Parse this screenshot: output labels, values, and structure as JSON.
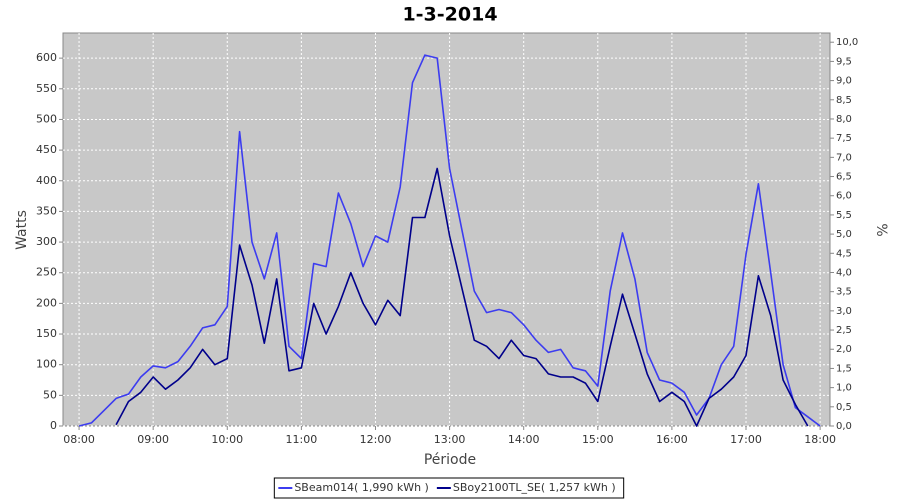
{
  "chart_data": {
    "type": "line",
    "title": "1-3-2014",
    "xlabel": "Période",
    "ylabel": "Watts",
    "y2label": "%",
    "x": [
      "08:00",
      "08:10",
      "08:20",
      "08:30",
      "08:40",
      "08:50",
      "09:00",
      "09:10",
      "09:20",
      "09:30",
      "09:40",
      "09:50",
      "10:00",
      "10:10",
      "10:20",
      "10:30",
      "10:40",
      "10:50",
      "11:00",
      "11:10",
      "11:20",
      "11:30",
      "11:40",
      "11:50",
      "12:00",
      "12:10",
      "12:20",
      "12:30",
      "12:40",
      "12:50",
      "13:00",
      "13:10",
      "13:20",
      "13:30",
      "13:40",
      "13:50",
      "14:00",
      "14:10",
      "14:20",
      "14:30",
      "14:40",
      "14:50",
      "15:00",
      "15:10",
      "15:20",
      "15:30",
      "15:40",
      "15:50",
      "16:00",
      "16:10",
      "16:20",
      "16:30",
      "16:40",
      "16:50",
      "17:00",
      "17:10",
      "17:20",
      "17:30",
      "17:40",
      "17:50",
      "18:00"
    ],
    "series": [
      {
        "name": "SBeam014( 1,990 kWh )",
        "color": "#3c3cf0",
        "values": [
          0,
          5,
          25,
          45,
          52,
          80,
          98,
          95,
          105,
          130,
          160,
          165,
          195,
          480,
          300,
          240,
          315,
          130,
          110,
          265,
          260,
          380,
          330,
          260,
          310,
          300,
          390,
          560,
          605,
          600,
          420,
          320,
          220,
          185,
          190,
          185,
          165,
          140,
          120,
          125,
          95,
          90,
          65,
          220,
          315,
          240,
          120,
          75,
          70,
          55,
          18,
          45,
          100,
          130,
          280,
          395,
          250,
          100,
          30,
          15,
          0
        ]
      },
      {
        "name": "SBoy2100TL_SE( 1,257 kWh )",
        "color": "#00008b",
        "values": [
          null,
          null,
          null,
          2,
          40,
          55,
          80,
          60,
          75,
          95,
          125,
          100,
          110,
          295,
          230,
          135,
          240,
          90,
          95,
          200,
          150,
          195,
          250,
          200,
          165,
          205,
          180,
          340,
          340,
          420,
          310,
          225,
          140,
          130,
          110,
          140,
          115,
          110,
          85,
          80,
          80,
          70,
          40,
          130,
          215,
          150,
          85,
          40,
          55,
          40,
          0,
          45,
          60,
          80,
          115,
          245,
          180,
          75,
          35,
          0,
          null
        ]
      }
    ],
    "xlim": [
      "07:47",
      "18:08"
    ],
    "xticks": [
      "08:00",
      "09:00",
      "10:00",
      "11:00",
      "12:00",
      "13:00",
      "14:00",
      "15:00",
      "16:00",
      "17:00",
      "18:00"
    ],
    "ylim": [
      0,
      641
    ],
    "yticks": [
      0,
      50,
      100,
      150,
      200,
      250,
      300,
      350,
      400,
      450,
      500,
      550,
      600
    ],
    "y2lim": [
      0,
      10.24
    ],
    "y2ticks": [
      {
        "value": 0,
        "label": "0,0"
      },
      {
        "value": 0.5,
        "label": "0,5"
      },
      {
        "value": 1,
        "label": "1,0"
      },
      {
        "value": 1.5,
        "label": "1,5"
      },
      {
        "value": 2,
        "label": "2,0"
      },
      {
        "value": 2.5,
        "label": "2,5"
      },
      {
        "value": 3,
        "label": "3,0"
      },
      {
        "value": 3.5,
        "label": "3,5"
      },
      {
        "value": 4,
        "label": "4,0"
      },
      {
        "value": 4.5,
        "label": "4,5"
      },
      {
        "value": 5,
        "label": "5,0"
      },
      {
        "value": 5.5,
        "label": "5,5"
      },
      {
        "value": 6,
        "label": "6,0"
      },
      {
        "value": 6.5,
        "label": "6,5"
      },
      {
        "value": 7,
        "label": "7,0"
      },
      {
        "value": 7.5,
        "label": "7,5"
      },
      {
        "value": 8,
        "label": "8,0"
      },
      {
        "value": 8.5,
        "label": "8,5"
      },
      {
        "value": 9,
        "label": "9,0"
      },
      {
        "value": 9.5,
        "label": "9,5"
      },
      {
        "value": 10,
        "label": "10,0"
      }
    ],
    "grid": true,
    "plot_background": "#c8c8c8"
  }
}
